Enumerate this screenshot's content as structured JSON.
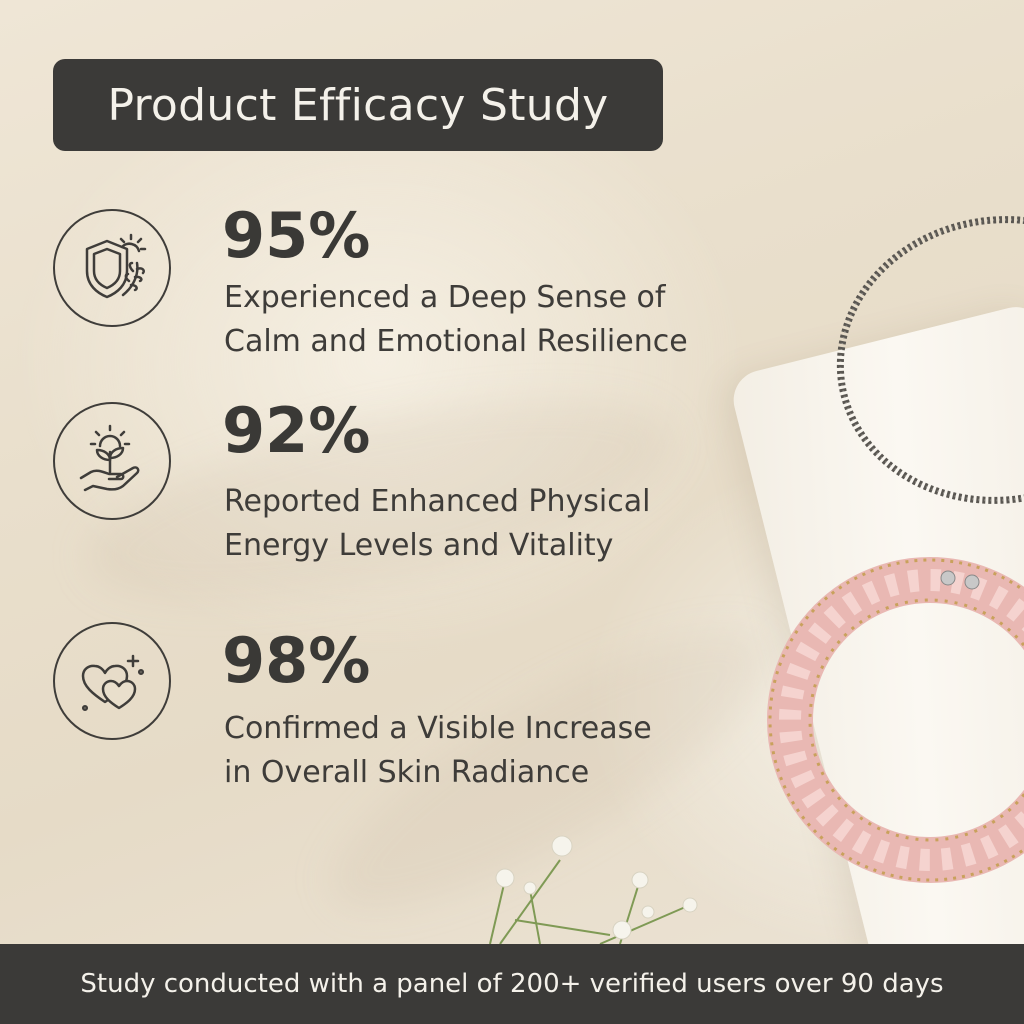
{
  "title": "Product Efficacy Study",
  "stats": [
    {
      "value": "95%",
      "line1": "Experienced a Deep Sense of",
      "line2": "Calm and Emotional Resilience",
      "icon": "shield-sun-leaf-icon"
    },
    {
      "value": "92%",
      "line1": "Reported Enhanced Physical",
      "line2": "Energy Levels and Vitality",
      "icon": "hand-sprout-sun-icon"
    },
    {
      "value": "98%",
      "line1": "Confirmed a Visible Increase",
      "line2": "in Overall Skin Radiance",
      "icon": "hearts-sparkle-icon"
    }
  ],
  "footer": "Study conducted with a panel of 200+ verified users over 90 days",
  "colors": {
    "panel": "#3b3a38",
    "text": "#3a3936",
    "background": "#e9dfcc",
    "rose_quartz": "#e9b8b3"
  }
}
